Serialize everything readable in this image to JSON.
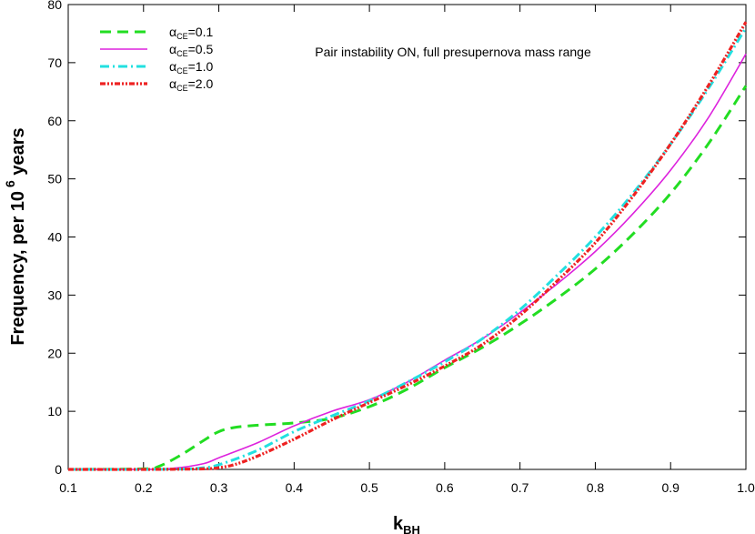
{
  "chart_data": {
    "type": "line",
    "title": "",
    "annotation": "Pair instability ON, full presupernova mass range",
    "xlabel": "k",
    "xlabel_sub": "BH",
    "ylabel": "Frequency, per 10",
    "ylabel_sup": "6",
    "ylabel_tail": " years",
    "xlim": [
      0.1,
      1.0
    ],
    "ylim": [
      0,
      80
    ],
    "xticks": [
      0.1,
      0.2,
      0.3,
      0.4,
      0.5,
      0.6,
      0.7,
      0.8,
      0.9,
      1.0
    ],
    "xtick_labels": [
      "0.1",
      "0.2",
      "0.3",
      "0.4",
      "0.5",
      "0.6",
      "0.7",
      "0.8",
      "0.9",
      "1.0"
    ],
    "yticks": [
      0,
      10,
      20,
      30,
      40,
      50,
      60,
      70,
      80
    ],
    "ytick_labels": [
      "0",
      "10",
      "20",
      "30",
      "40",
      "50",
      "60",
      "70",
      "80"
    ],
    "grid": false,
    "legend_position": "top-left",
    "series": [
      {
        "name": "α_CE=0.1",
        "label_main": "α",
        "label_sub": "CE",
        "label_tail": "=0.1",
        "color": "#22dd22",
        "dash": "12,7",
        "width": 3,
        "x": [
          0.1,
          0.2,
          0.22,
          0.25,
          0.28,
          0.3,
          0.32,
          0.35,
          0.4,
          0.45,
          0.5,
          0.55,
          0.6,
          0.65,
          0.7,
          0.75,
          0.8,
          0.85,
          0.9,
          0.95,
          1.0
        ],
        "y": [
          0,
          0.1,
          0.5,
          2.5,
          5.0,
          6.5,
          7.2,
          7.6,
          8.0,
          8.8,
          10.8,
          13.8,
          17.5,
          21.0,
          25.0,
          29.5,
          34.5,
          40.5,
          47.5,
          56.0,
          66.0
        ]
      },
      {
        "name": "α_CE=0.5",
        "label_main": "α",
        "label_sub": "CE",
        "label_tail": "=0.5",
        "color": "#dd22dd",
        "dash": "",
        "width": 1.6,
        "x": [
          0.1,
          0.2,
          0.24,
          0.28,
          0.3,
          0.35,
          0.4,
          0.45,
          0.5,
          0.55,
          0.6,
          0.65,
          0.7,
          0.75,
          0.8,
          0.85,
          0.9,
          0.95,
          1.0
        ],
        "y": [
          0,
          0,
          0.2,
          1.0,
          2.0,
          4.5,
          7.5,
          10.0,
          12.0,
          15.0,
          18.8,
          22.5,
          27.0,
          32.0,
          37.5,
          44.0,
          51.5,
          60.5,
          71.5
        ]
      },
      {
        "name": "α_CE=1.0",
        "label_main": "α",
        "label_sub": "CE",
        "label_tail": "=1.0",
        "color": "#22e0e0",
        "dash": "10,4,2,4",
        "width": 3,
        "x": [
          0.1,
          0.2,
          0.26,
          0.28,
          0.3,
          0.35,
          0.4,
          0.45,
          0.5,
          0.55,
          0.6,
          0.65,
          0.7,
          0.75,
          0.8,
          0.85,
          0.9,
          0.95,
          1.0
        ],
        "y": [
          0,
          0,
          0.1,
          0.3,
          0.8,
          3.2,
          6.5,
          9.2,
          11.8,
          15.0,
          18.5,
          22.5,
          27.5,
          33.5,
          40.0,
          47.5,
          56.0,
          65.5,
          76.0
        ]
      },
      {
        "name": "α_CE=2.0",
        "label_main": "α",
        "label_sub": "CE",
        "label_tail": "=2.0",
        "color": "#ee2222",
        "dash": "6,2,2,2,2,2",
        "width": 3.2,
        "x": [
          0.1,
          0.2,
          0.28,
          0.3,
          0.32,
          0.35,
          0.4,
          0.45,
          0.5,
          0.55,
          0.6,
          0.65,
          0.7,
          0.75,
          0.8,
          0.85,
          0.9,
          0.95,
          1.0
        ],
        "y": [
          0,
          0,
          0.1,
          0.3,
          0.8,
          2.2,
          5.2,
          8.5,
          11.5,
          14.5,
          17.8,
          21.5,
          26.5,
          32.5,
          39.0,
          47.0,
          56.0,
          66.0,
          77.0
        ]
      }
    ]
  }
}
